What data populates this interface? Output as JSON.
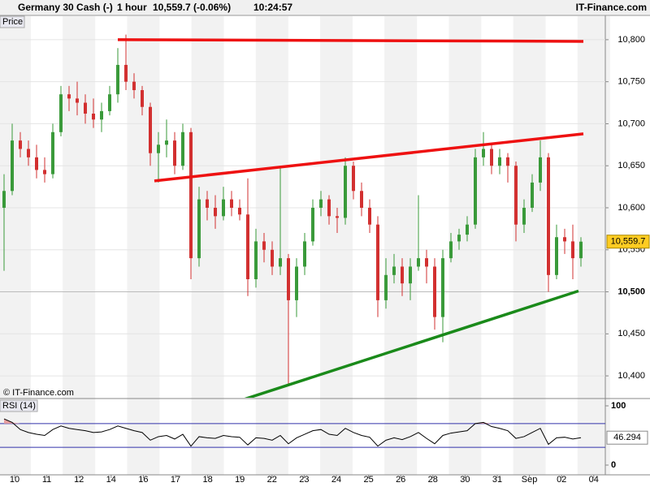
{
  "header": {
    "title": "Germany 30 Cash (-)",
    "interval": "1 hour",
    "quote": "10,559.7 (-0.06%)",
    "time": "10:24:57",
    "brand": "IT-Finance.com"
  },
  "chart_data": {
    "type": "candlestick",
    "panel_label": "Price",
    "watermark": "© IT-Finance.com",
    "ylim": [
      10374,
      10827.9
    ],
    "yticks": [
      {
        "value": 10400,
        "label": "10,400"
      },
      {
        "value": 10450,
        "label": "10,450"
      },
      {
        "value": 10500,
        "label": "10,500"
      },
      {
        "value": 10550,
        "label": "10,550"
      },
      {
        "value": 10600,
        "label": "10,600"
      },
      {
        "value": 10650,
        "label": "10,650"
      },
      {
        "value": 10700,
        "label": "10,700"
      },
      {
        "value": 10750,
        "label": "10,750"
      },
      {
        "value": 10800,
        "label": "10,800"
      }
    ],
    "grid": true,
    "up_color": "#3a9a3a",
    "down_color": "#d23030",
    "level": 10500,
    "last": {
      "value": 10559.7,
      "label": "10,559.7"
    },
    "xlabels": [
      "10",
      "11",
      "12",
      "14",
      "16",
      "17",
      "18",
      "19",
      "22",
      "23",
      "24",
      "25",
      "26",
      "28",
      "30",
      "31",
      "Sep",
      "02",
      "04"
    ],
    "ohlc": [
      [
        10600,
        10640,
        10525,
        10620
      ],
      [
        10620,
        10700,
        10615,
        10680
      ],
      [
        10680,
        10690,
        10660,
        10670
      ],
      [
        10670,
        10680,
        10650,
        10660
      ],
      [
        10660,
        10675,
        10635,
        10645
      ],
      [
        10645,
        10660,
        10630,
        10640
      ],
      [
        10640,
        10700,
        10635,
        10690
      ],
      [
        10690,
        10745,
        10685,
        10735
      ],
      [
        10735,
        10745,
        10715,
        10730
      ],
      [
        10730,
        10750,
        10710,
        10725
      ],
      [
        10725,
        10735,
        10700,
        10712
      ],
      [
        10712,
        10730,
        10695,
        10705
      ],
      [
        10705,
        10725,
        10690,
        10715
      ],
      [
        10715,
        10745,
        10710,
        10735
      ],
      [
        10735,
        10790,
        10725,
        10770
      ],
      [
        10770,
        10806,
        10740,
        10750
      ],
      [
        10750,
        10760,
        10730,
        10740
      ],
      [
        10740,
        10745,
        10710,
        10720
      ],
      [
        10720,
        10725,
        10650,
        10665
      ],
      [
        10665,
        10690,
        10630,
        10675
      ],
      [
        10675,
        10705,
        10660,
        10680
      ],
      [
        10680,
        10690,
        10640,
        10650
      ],
      [
        10650,
        10700,
        10645,
        10690
      ],
      [
        10690,
        10695,
        10515,
        10540
      ],
      [
        10540,
        10625,
        10530,
        10610
      ],
      [
        10610,
        10620,
        10585,
        10600
      ],
      [
        10600,
        10615,
        10575,
        10590
      ],
      [
        10590,
        10625,
        10585,
        10610
      ],
      [
        10610,
        10620,
        10590,
        10600
      ],
      [
        10600,
        10610,
        10585,
        10592
      ],
      [
        10592,
        10635,
        10495,
        10515
      ],
      [
        10515,
        10575,
        10505,
        10560
      ],
      [
        10560,
        10570,
        10535,
        10550
      ],
      [
        10550,
        10560,
        10520,
        10530
      ],
      [
        10530,
        10650,
        10520,
        10540
      ],
      [
        10540,
        10545,
        10390,
        10490
      ],
      [
        10490,
        10540,
        10470,
        10530
      ],
      [
        10530,
        10570,
        10520,
        10560
      ],
      [
        10560,
        10610,
        10555,
        10600
      ],
      [
        10600,
        10620,
        10590,
        10610
      ],
      [
        10610,
        10615,
        10580,
        10590
      ],
      [
        10590,
        10600,
        10570,
        10588
      ],
      [
        10588,
        10660,
        10580,
        10650
      ],
      [
        10650,
        10655,
        10610,
        10620
      ],
      [
        10620,
        10630,
        10590,
        10600
      ],
      [
        10600,
        10610,
        10570,
        10580
      ],
      [
        10580,
        10590,
        10470,
        10490
      ],
      [
        10490,
        10540,
        10480,
        10520
      ],
      [
        10520,
        10545,
        10510,
        10530
      ],
      [
        10530,
        10540,
        10495,
        10510
      ],
      [
        10510,
        10540,
        10490,
        10530
      ],
      [
        10530,
        10615,
        10525,
        10540
      ],
      [
        10540,
        10550,
        10510,
        10530
      ],
      [
        10530,
        10540,
        10455,
        10470
      ],
      [
        10470,
        10550,
        10440,
        10540
      ],
      [
        10540,
        10570,
        10535,
        10560
      ],
      [
        10560,
        10575,
        10550,
        10568
      ],
      [
        10568,
        10590,
        10560,
        10580
      ],
      [
        10580,
        10670,
        10575,
        10660
      ],
      [
        10660,
        10690,
        10650,
        10670
      ],
      [
        10670,
        10675,
        10640,
        10650
      ],
      [
        10650,
        10670,
        10640,
        10660
      ],
      [
        10660,
        10665,
        10630,
        10650
      ],
      [
        10650,
        10655,
        10560,
        10580
      ],
      [
        10580,
        10610,
        10570,
        10600
      ],
      [
        10600,
        10640,
        10595,
        10630
      ],
      [
        10630,
        10680,
        10620,
        10660
      ],
      [
        10660,
        10665,
        10500,
        10520
      ],
      [
        10520,
        10580,
        10515,
        10565
      ],
      [
        10565,
        10575,
        10545,
        10560
      ],
      [
        10560,
        10580,
        10515,
        10540
      ],
      [
        10540,
        10565,
        10530,
        10559.7
      ]
    ],
    "trendlines": [
      {
        "color": "#ee1111",
        "points": [
          [
            14,
            10800
          ],
          [
            71.3,
            10798
          ]
        ]
      },
      {
        "color": "#ee1111",
        "points": [
          [
            18.5,
            10632
          ],
          [
            71.3,
            10688
          ]
        ]
      },
      {
        "color": "#1a8a1a",
        "points": [
          [
            29.5,
            10372
          ],
          [
            70.7,
            10501
          ]
        ]
      }
    ],
    "rsi": {
      "label": "RSI (14)",
      "ylim": [
        0,
        100
      ],
      "yticks": [
        0,
        100
      ],
      "levels": [
        70,
        30
      ],
      "color": "#000000",
      "values": [
        78,
        72,
        60,
        55,
        52,
        50,
        60,
        66,
        62,
        60,
        58,
        55,
        56,
        60,
        66,
        62,
        58,
        55,
        42,
        48,
        50,
        44,
        52,
        32,
        48,
        46,
        45,
        50,
        48,
        47,
        34,
        46,
        45,
        42,
        50,
        36,
        46,
        52,
        58,
        60,
        52,
        50,
        62,
        55,
        50,
        47,
        32,
        42,
        46,
        43,
        48,
        55,
        45,
        36,
        50,
        54,
        56,
        58,
        70,
        72,
        65,
        62,
        58,
        45,
        48,
        55,
        62,
        35,
        46,
        47,
        44,
        46.294
      ]
    }
  }
}
